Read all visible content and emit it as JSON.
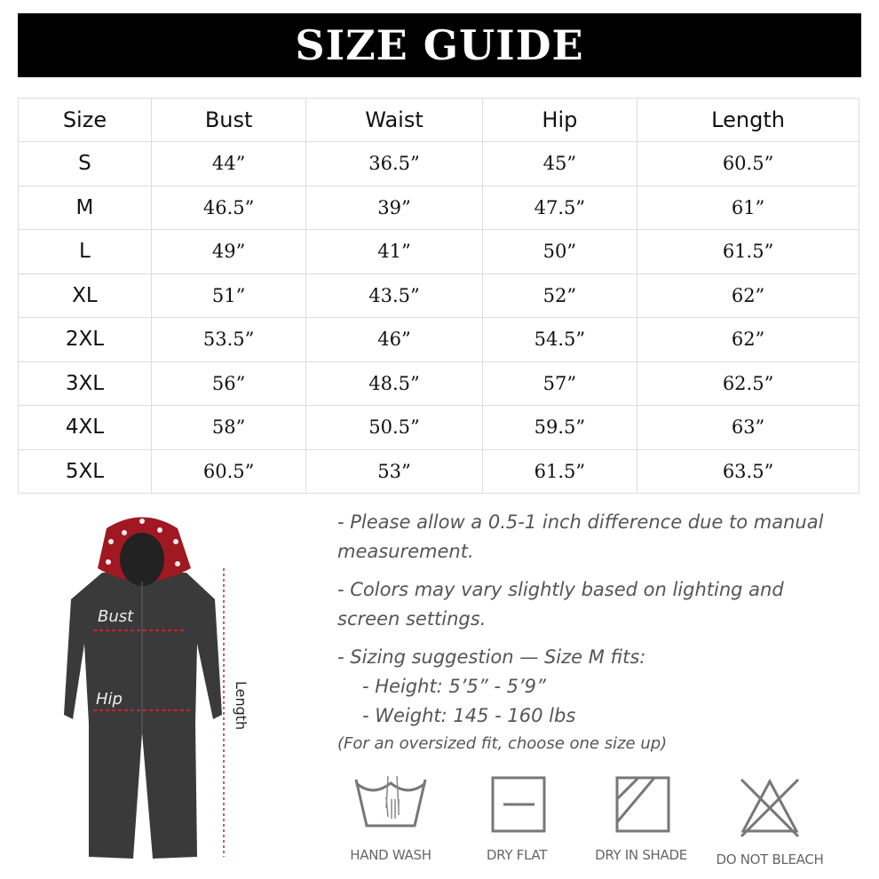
{
  "title": "SIZE GUIDE",
  "table": {
    "headers": [
      "Size",
      "Bust",
      "Waist",
      "Hip",
      "Length"
    ],
    "rows": [
      [
        "S",
        "44”",
        "36.5”",
        "45”",
        "60.5”"
      ],
      [
        "M",
        "46.5”",
        "39”",
        "47.5”",
        "61”"
      ],
      [
        "L",
        "49”",
        "41”",
        "50”",
        "61.5”"
      ],
      [
        "XL",
        "51”",
        "43.5”",
        "52”",
        "62”"
      ],
      [
        "2XL",
        "53.5”",
        "46”",
        "54.5”",
        "62”"
      ],
      [
        "3XL",
        "56”",
        "48.5”",
        "57”",
        "62.5”"
      ],
      [
        "4XL",
        "58”",
        "50.5”",
        "59.5”",
        "63”"
      ],
      [
        "5XL",
        "60.5”",
        "53”",
        "61.5”",
        "63.5”"
      ]
    ]
  },
  "diagram": {
    "bust": "Bust",
    "hip": "Hip",
    "length": "Length",
    "accent": "#d0202a"
  },
  "notes": {
    "n1": "- Please allow a 0.5-1 inch difference due to manual measurement.",
    "n2": "- Colors may vary slightly based on lighting and screen settings.",
    "n3": "- Sizing suggestion — Size M fits:",
    "n4": "- Height: 5’5” - 5’9”",
    "n5": "- Weight: 145 - 160 lbs",
    "n6": "(For an oversized fit, choose one size up)"
  },
  "care": [
    {
      "label": "HAND WASH",
      "icon": "hand-wash-icon"
    },
    {
      "label": "DRY FLAT",
      "icon": "dry-flat-icon"
    },
    {
      "label": "DRY IN SHADE",
      "icon": "dry-in-shade-icon"
    },
    {
      "label": "DO NOT BLEACH",
      "icon": "do-not-bleach-icon"
    }
  ]
}
